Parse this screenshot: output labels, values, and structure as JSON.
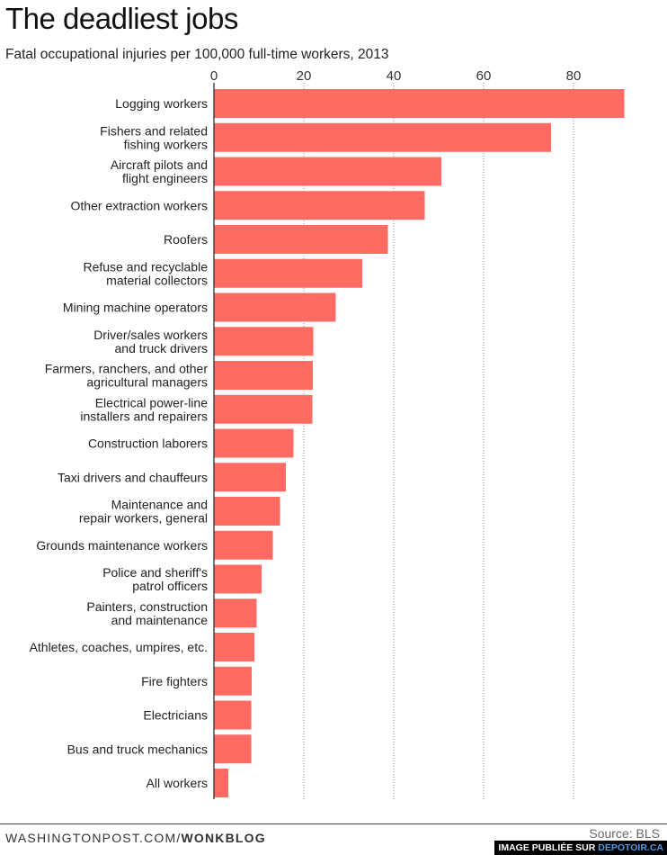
{
  "header": {
    "title": "The deadliest jobs",
    "subtitle": "Fatal occupational injuries per 100,000 full-time workers, 2013"
  },
  "footer": {
    "site": "WASHINGTONPOST.COM/",
    "site_bold": "WONKBLOG",
    "source": "Source: BLS",
    "watermark_prefix": "IMAGE PUBLIÉE SUR ",
    "watermark_brand": "DEPOTOIR.CA"
  },
  "colors": {
    "bar": "#ff6b63",
    "grid": "#888888",
    "text": "#222222"
  },
  "chart_data": {
    "type": "bar",
    "orientation": "horizontal",
    "title": "The deadliest jobs",
    "subtitle": "Fatal occupational injuries per 100,000 full-time workers, 2013",
    "xlim": [
      0,
      92
    ],
    "x_ticks": [
      0,
      20,
      40,
      60,
      80
    ],
    "grid": true,
    "categories": [
      [
        "Logging workers"
      ],
      [
        "Fishers and related",
        "fishing workers"
      ],
      [
        "Aircraft pilots and",
        "flight engineers"
      ],
      [
        "Other extraction workers"
      ],
      [
        "Roofers"
      ],
      [
        "Refuse and recyclable",
        "material collectors"
      ],
      [
        "Mining machine operators"
      ],
      [
        "Driver/sales workers",
        "and truck drivers"
      ],
      [
        "Farmers, ranchers, and other",
        "agricultural managers"
      ],
      [
        "Electrical power-line",
        "installers and repairers"
      ],
      [
        "Construction laborers"
      ],
      [
        "Taxi drivers and chauffeurs"
      ],
      [
        "Maintenance and",
        "repair workers, general"
      ],
      [
        "Grounds maintenance workers"
      ],
      [
        "Police and sheriff's",
        "patrol officers"
      ],
      [
        "Painters, construction",
        "and maintenance"
      ],
      [
        "Athletes, coaches, umpires, etc."
      ],
      [
        "Fire fighters"
      ],
      [
        "Electricians"
      ],
      [
        "Bus and truck mechanics"
      ],
      [
        "All workers"
      ]
    ],
    "values": [
      91.3,
      75.0,
      50.6,
      46.9,
      38.7,
      33.0,
      27.1,
      22.1,
      22.0,
      21.9,
      17.7,
      16.0,
      14.7,
      13.1,
      10.6,
      9.5,
      9.0,
      8.4,
      8.3,
      8.3,
      3.2
    ]
  }
}
